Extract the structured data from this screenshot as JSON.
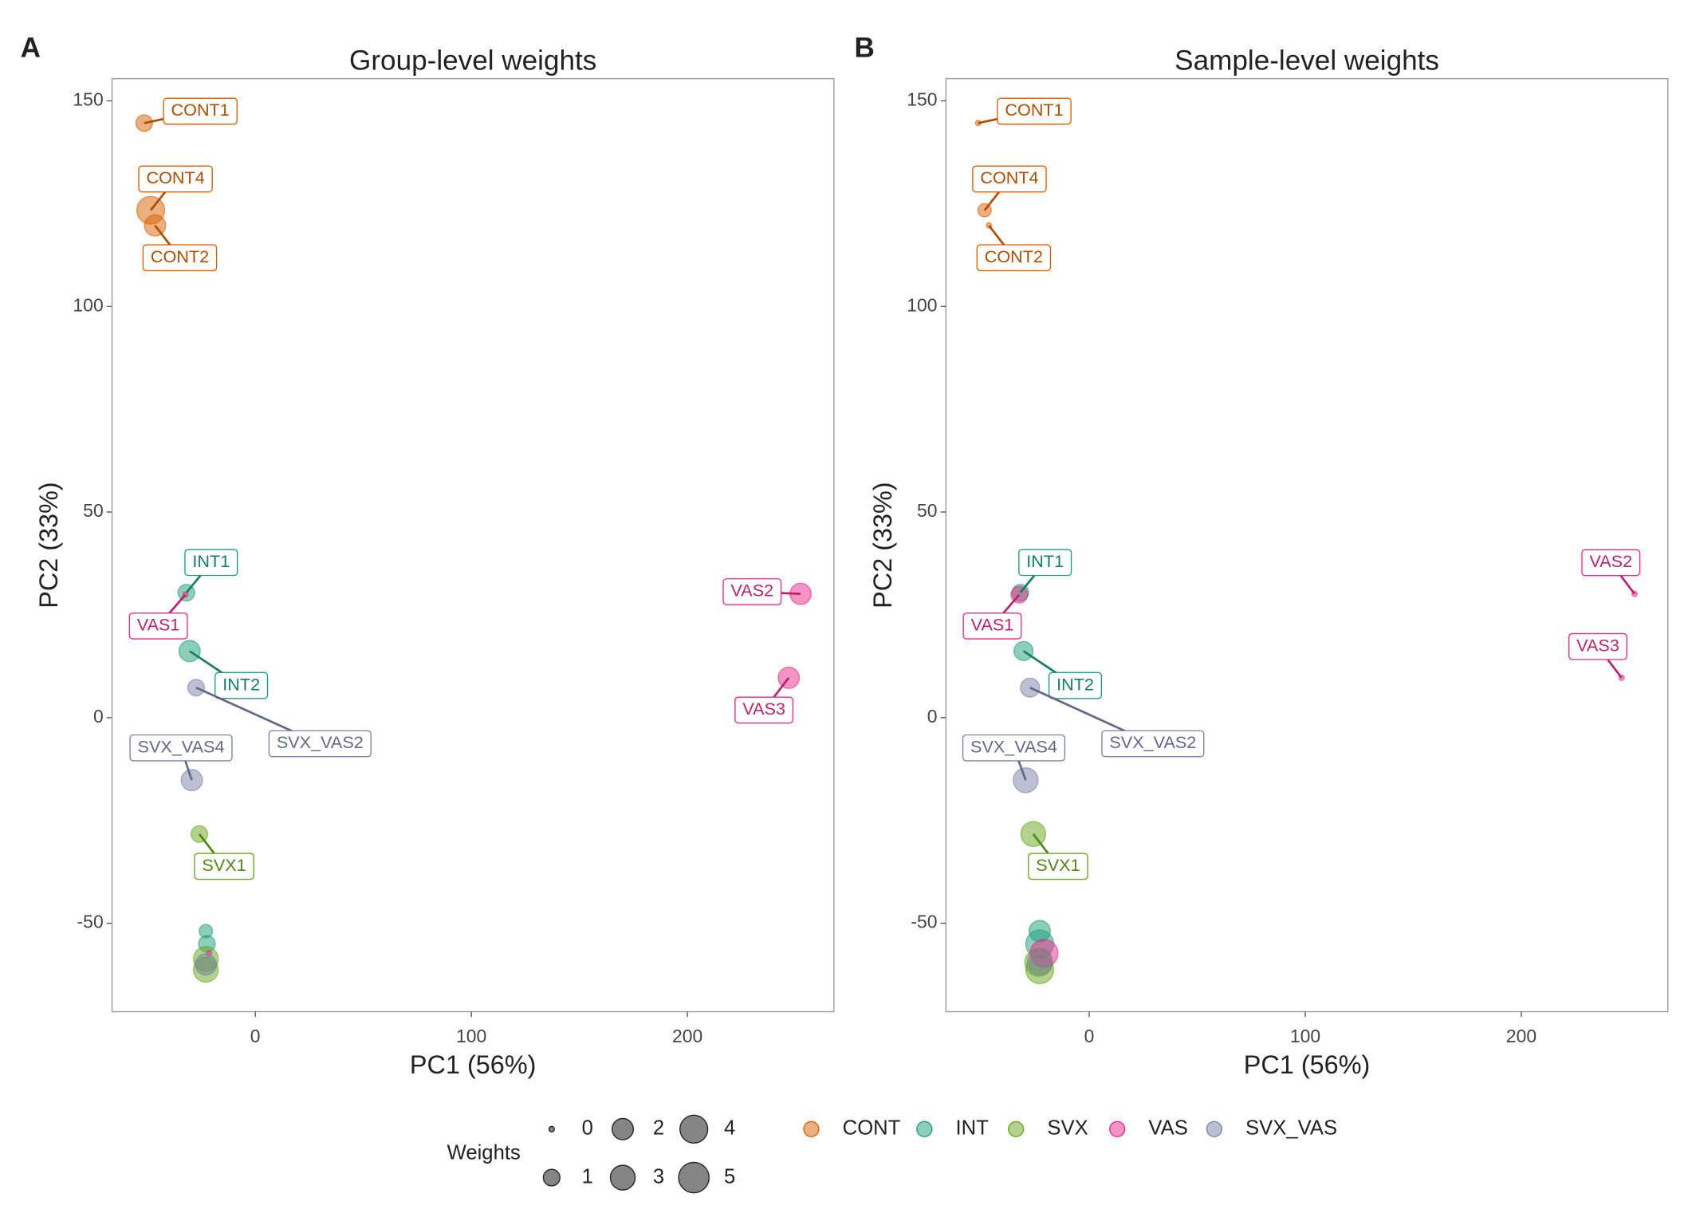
{
  "chart_data": [
    {
      "type": "scatter",
      "panel_label": "A",
      "title": "Group-level weights",
      "x_label": "PC1 (56%)",
      "y_label": "PC2 (33%)",
      "xlim": [
        -66.3,
        267.8
      ],
      "ylim": [
        -71.5,
        155.4
      ],
      "xticks": [
        0,
        100,
        200
      ],
      "yticks": [
        -50,
        0,
        50,
        100,
        150
      ],
      "series": [
        {
          "name": "CONT",
          "color": "#d95f02",
          "x": [
            -51.4,
            -48.4,
            -46.4
          ],
          "y": [
            144.6,
            123.4,
            119.7
          ],
          "sizes": [
            1,
            4,
            2
          ],
          "labels": [
            "CONT1",
            "CONT4",
            "CONT2"
          ]
        },
        {
          "name": "INT",
          "color": "#1b9e77",
          "x": [
            -31.9,
            -30.4,
            -22.9,
            -22.4
          ],
          "y": [
            30.4,
            16.2,
            -51.9,
            -55.0
          ],
          "sizes": [
            1,
            2,
            0.5,
            1
          ],
          "labels": [
            "INT1",
            "INT2",
            null,
            null
          ]
        },
        {
          "name": "SVX",
          "color": "#66a61e",
          "x": [
            -25.9,
            -22.9,
            -22.9
          ],
          "y": [
            -28.3,
            -58.7,
            -61.3
          ],
          "sizes": [
            1,
            3,
            3
          ],
          "labels": [
            "SVX1",
            null,
            null
          ]
        },
        {
          "name": "VAS",
          "color": "#e7298a",
          "x": [
            -32.4,
            252.4,
            246.9,
            -21.4
          ],
          "y": [
            29.9,
            30.1,
            9.7,
            -57.3
          ],
          "sizes": [
            0,
            2,
            2,
            0
          ],
          "labels": [
            "VAS1",
            "VAS2",
            "VAS3",
            null
          ]
        },
        {
          "name": "SVX_VAS",
          "color": "#7a82a6",
          "x": [
            -27.4,
            -29.4,
            -22.9
          ],
          "y": [
            7.3,
            -15.2,
            -60.0
          ],
          "sizes": [
            1,
            2,
            2
          ],
          "labels": [
            "SVX_VAS2",
            "SVX_VAS4",
            null
          ]
        }
      ]
    },
    {
      "type": "scatter",
      "panel_label": "B",
      "title": "Sample-level weights",
      "x_label": "PC1 (56%)",
      "y_label": "PC2 (33%)",
      "xlim": [
        -66.3,
        267.8
      ],
      "ylim": [
        -71.5,
        155.4
      ],
      "xticks": [
        0,
        100,
        200
      ],
      "yticks": [
        -50,
        0,
        50,
        100,
        150
      ],
      "series": [
        {
          "color": "#d95f02",
          "x": [
            -51.4,
            -48.4,
            -46.4
          ],
          "y": [
            144.6,
            123.4,
            119.7
          ],
          "sizes": [
            0,
            0.5,
            0
          ],
          "labels": [
            "CONT1",
            "CONT4",
            "CONT2"
          ]
        },
        {
          "color": "#1b9e77",
          "x": [
            -31.9,
            -30.4,
            -22.9,
            -22.9
          ],
          "y": [
            30.4,
            16.2,
            -51.9,
            -55.0
          ],
          "sizes": [
            1,
            1.5,
            2,
            4
          ],
          "labels": [
            "INT1",
            "INT2",
            null,
            null
          ]
        },
        {
          "color": "#66a61e",
          "x": [
            -25.9,
            -23.4,
            -22.9
          ],
          "y": [
            -28.3,
            -59.5,
            -61.3
          ],
          "sizes": [
            3,
            4,
            4
          ],
          "labels": [
            "SVX1",
            null,
            null
          ]
        },
        {
          "color": "#e7298a",
          "x": [
            -32.4,
            252.4,
            246.4,
            -20.9
          ],
          "y": [
            29.9,
            30.1,
            9.7,
            -57.3
          ],
          "sizes": [
            1,
            0,
            0,
            4
          ],
          "labels": [
            "VAS1",
            "VAS2",
            "VAS3",
            null
          ]
        },
        {
          "color": "#7a82a6",
          "x": [
            -27.4,
            -29.4,
            -22.9
          ],
          "y": [
            7.3,
            -15.2,
            -59.5
          ],
          "sizes": [
            1.5,
            3,
            3
          ],
          "labels": [
            "SVX_VAS2",
            "SVX_VAS4",
            null
          ]
        }
      ]
    }
  ],
  "legend": {
    "size_title": "Weights",
    "sizes": [
      0,
      1,
      2,
      3,
      4,
      5
    ]
  }
}
